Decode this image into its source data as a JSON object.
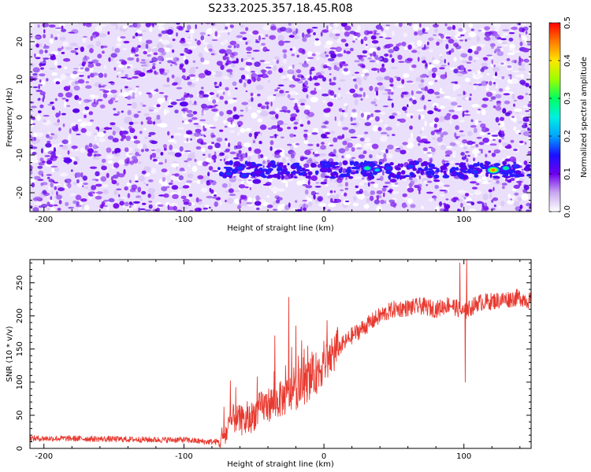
{
  "figure_title": "S233.2025.357.18.45.R08",
  "chart_data": [
    {
      "type": "heatmap",
      "title": "S233.2025.357.18.45.R08",
      "xlabel": "Height of straight line (km)",
      "ylabel": "Frequency (Hz)",
      "xlim": [
        -210,
        148
      ],
      "ylim": [
        -25,
        25
      ],
      "xticks": [
        -200,
        -100,
        0,
        100
      ],
      "yticks": [
        -20,
        -10,
        0,
        10,
        20
      ],
      "colorbar": {
        "label": "Normalized spectral amplitude",
        "range": [
          0.0,
          0.5
        ],
        "ticks": [
          "0.0",
          "0.1",
          "0.2",
          "0.3",
          "0.4",
          "0.5"
        ]
      },
      "background_level": 0.05,
      "band": {
        "frequency_hz": -14,
        "from_km": -75,
        "to_km": 148
      },
      "peaks": [
        {
          "x_km": -183,
          "freq_hz": -11.5,
          "amp": 0.12
        },
        {
          "x_km": -100,
          "freq_hz": 3.5,
          "amp": 0.12
        },
        {
          "x_km": -68,
          "freq_hz": -15,
          "amp": 0.14
        },
        {
          "x_km": -60,
          "freq_hz": -13.5,
          "amp": 0.16
        },
        {
          "x_km": -57,
          "freq_hz": -15.5,
          "amp": 0.17
        },
        {
          "x_km": -48,
          "freq_hz": -17,
          "amp": 0.12
        },
        {
          "x_km": 0,
          "freq_hz": -14,
          "amp": 0.12
        },
        {
          "x_km": 31,
          "freq_hz": -13.5,
          "amp": 0.29
        },
        {
          "x_km": 38,
          "freq_hz": -14,
          "amp": 0.21
        },
        {
          "x_km": 46,
          "freq_hz": -13.5,
          "amp": 0.15
        },
        {
          "x_km": 62,
          "freq_hz": -13,
          "amp": 0.14
        },
        {
          "x_km": 108,
          "freq_hz": -14.5,
          "amp": 0.13
        },
        {
          "x_km": 121,
          "freq_hz": -14,
          "amp": 0.45
        },
        {
          "x_km": 130,
          "freq_hz": -13.5,
          "amp": 0.25
        },
        {
          "x_km": 137,
          "freq_hz": -13,
          "amp": 0.13
        }
      ]
    },
    {
      "type": "line",
      "xlabel": "Height of straight line (km)",
      "ylabel": "SNR (10 * v/v)",
      "xlim": [
        -210,
        148
      ],
      "ylim": [
        0,
        285
      ],
      "xticks": [
        -200,
        -100,
        0,
        100
      ],
      "yticks": [
        0,
        50,
        100,
        150,
        200,
        250
      ],
      "color": "#e8392f",
      "series": [
        {
          "name": "SNR",
          "x": [
            -210,
            -180,
            -150,
            -120,
            -100,
            -85,
            -75,
            -70,
            -65,
            -55,
            -45,
            -35,
            -25,
            -15,
            -5,
            0,
            10,
            20,
            30,
            40,
            50,
            60,
            70,
            80,
            90,
            100,
            110,
            120,
            130,
            140,
            148
          ],
          "y": [
            15,
            15,
            14,
            13,
            13,
            10,
            10,
            22,
            45,
            40,
            62,
            70,
            80,
            95,
            115,
            130,
            150,
            170,
            185,
            200,
            210,
            212,
            215,
            210,
            218,
            205,
            220,
            222,
            225,
            228,
            222
          ],
          "spikes": [
            {
              "x": -63,
              "y": 92
            },
            {
              "x": -35,
              "y": 170
            },
            {
              "x": -25,
              "y": 228
            },
            {
              "x": -20,
              "y": 185
            },
            {
              "x": 97,
              "y": 280
            },
            {
              "x": 102,
              "y": 285
            },
            {
              "x": 101,
              "y": 100
            }
          ]
        }
      ]
    }
  ]
}
